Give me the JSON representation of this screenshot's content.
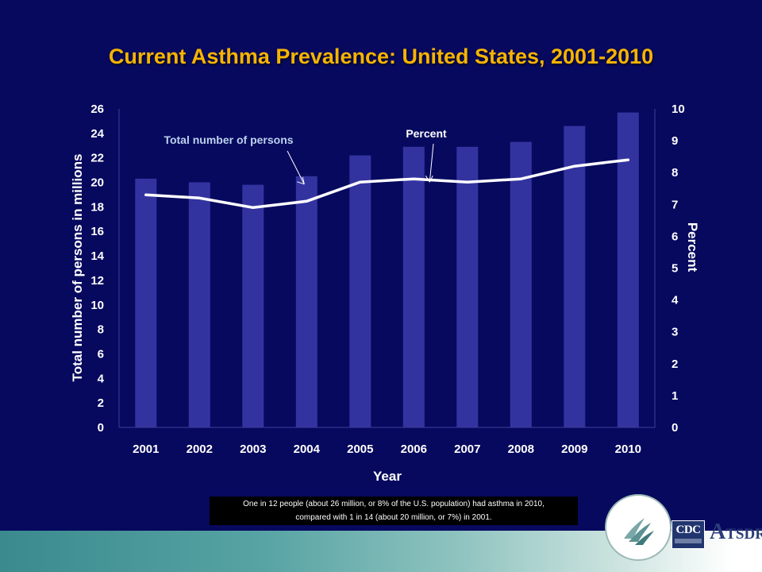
{
  "title": "Current Asthma Prevalence: United States, 2001-2010",
  "caption_lines": [
    "One in 12 people (about 26 million, or 8% of the U.S. population) had asthma in 2010,",
    "compared with 1 in 14 (about 20 million, or 7%) in 2001."
  ],
  "logos": {
    "cdc": "CDC",
    "atsdr_initial": "A",
    "atsdr_rest": "TSDR"
  },
  "colors": {
    "background": "#07095e",
    "bars": "#3333a0",
    "line": "#ffffff",
    "title": "#f6b400",
    "annotation_bars": "#bcd2ee",
    "annotation_line": "#ffffff"
  },
  "chart_data": {
    "type": "bar",
    "title": "Current Asthma Prevalence: United States, 2001-2010",
    "xlabel": "Year",
    "ylabel": "Total number of persons in millions",
    "y2label": "Percent",
    "categories": [
      "2001",
      "2002",
      "2003",
      "2004",
      "2005",
      "2006",
      "2007",
      "2008",
      "2009",
      "2010"
    ],
    "ylim": [
      0,
      26
    ],
    "yticks": [
      0,
      2,
      4,
      6,
      8,
      10,
      12,
      14,
      16,
      18,
      20,
      22,
      24,
      26
    ],
    "y2lim": [
      0,
      10
    ],
    "y2ticks": [
      0,
      1,
      2,
      3,
      4,
      5,
      6,
      7,
      8,
      9,
      10
    ],
    "grid": false,
    "series": [
      {
        "name": "Total number of persons",
        "type": "bar",
        "axis": "left",
        "values": [
          20.3,
          20.0,
          19.8,
          20.5,
          22.2,
          22.9,
          22.9,
          23.3,
          24.6,
          25.7
        ]
      },
      {
        "name": "Percent",
        "type": "line",
        "axis": "right",
        "values": [
          7.3,
          7.2,
          6.9,
          7.1,
          7.7,
          7.8,
          7.7,
          7.8,
          8.2,
          8.4
        ]
      }
    ],
    "annotations": [
      {
        "text": "Total number of persons",
        "target_series": "Total number of persons",
        "target_category": "2004"
      },
      {
        "text": "Percent",
        "target_series": "Percent",
        "target_category": "2006"
      }
    ]
  }
}
